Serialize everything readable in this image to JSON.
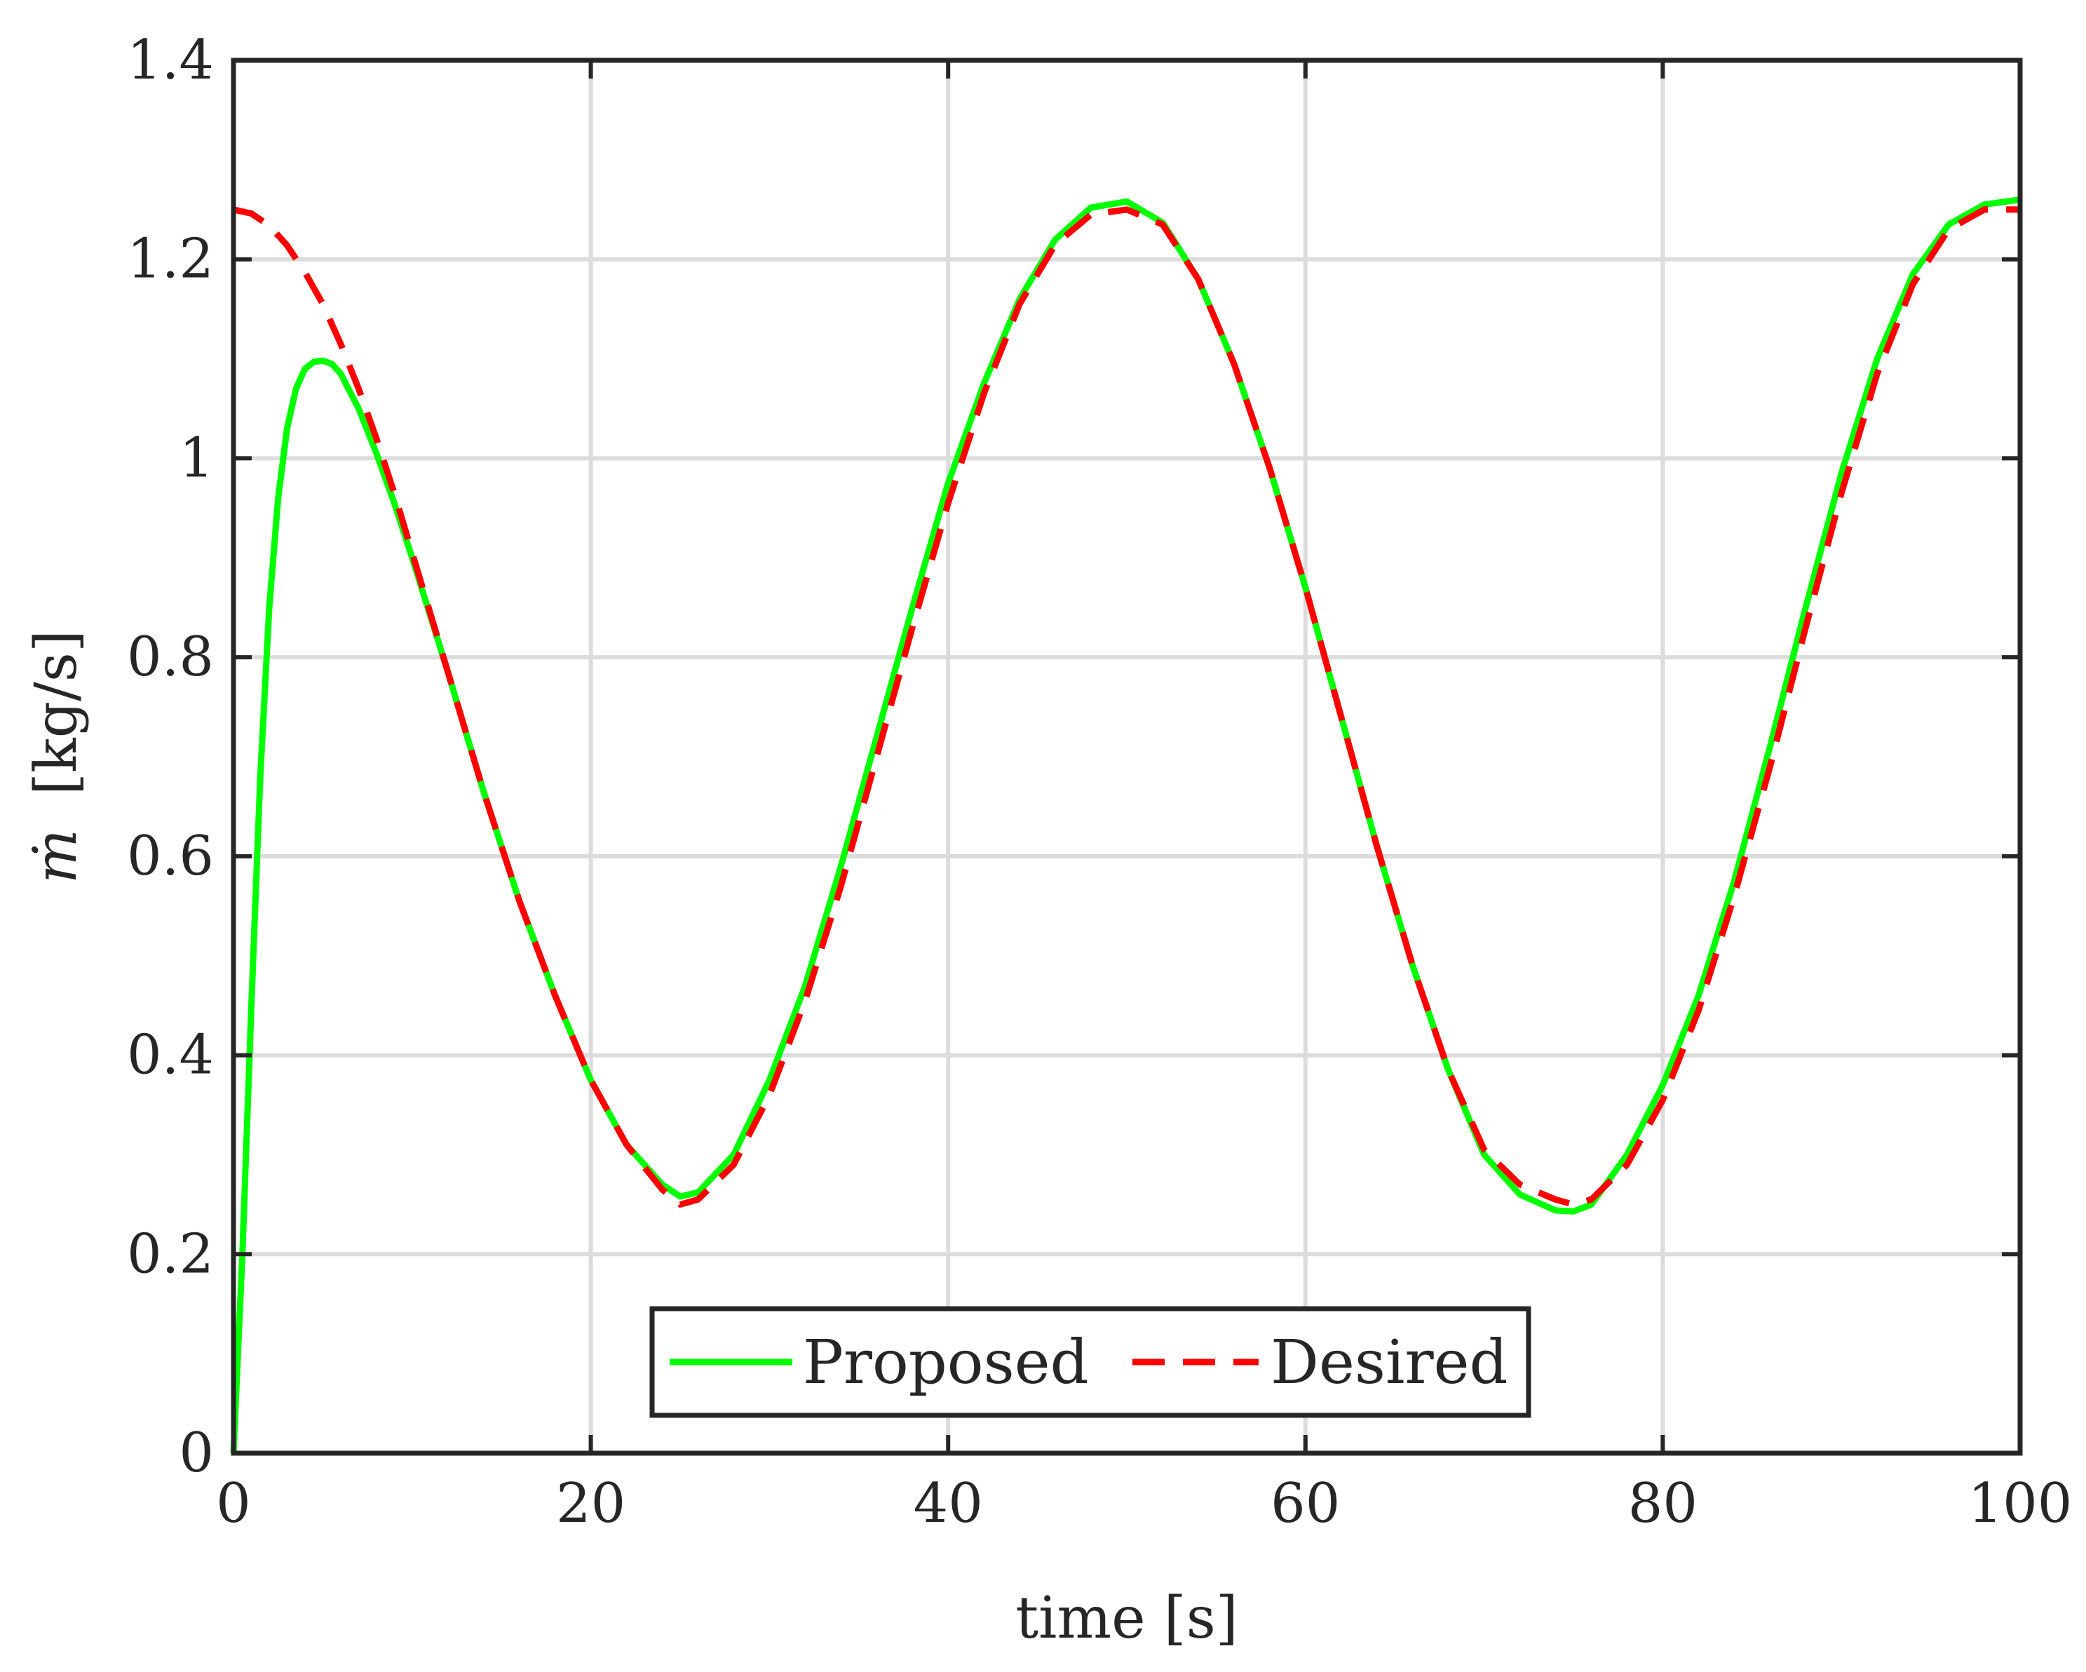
{
  "chart_data": {
    "type": "line",
    "xlabel": "time [s]",
    "ylabel_symbol": "ṁ",
    "ylabel_unit": "[kg/s]",
    "xlim": [
      0,
      100
    ],
    "ylim": [
      0,
      1.4
    ],
    "xticks": [
      0,
      20,
      40,
      60,
      80,
      100
    ],
    "yticks": [
      0,
      0.2,
      0.4,
      0.6,
      0.8,
      1,
      1.2,
      1.4
    ],
    "xtick_labels": [
      "0",
      "20",
      "40",
      "60",
      "80",
      "100"
    ],
    "ytick_labels": [
      "0",
      "0.2",
      "0.4",
      "0.6",
      "0.8",
      "1",
      "1.2",
      "1.4"
    ],
    "grid": true,
    "legend_position": "bottom-center",
    "series": [
      {
        "name": "Proposed",
        "color": "#00ff00",
        "style": "solid",
        "x": [
          0,
          0.5,
          1,
          1.5,
          2,
          2.5,
          3,
          3.5,
          4,
          4.5,
          5,
          5.5,
          6,
          7,
          8,
          9,
          10,
          12,
          14,
          16,
          18,
          20,
          22,
          24,
          25,
          26,
          28,
          30,
          32,
          34,
          36,
          38,
          40,
          42,
          44,
          46,
          48,
          50,
          52,
          54,
          56,
          58,
          60,
          62,
          64,
          66,
          68,
          70,
          72,
          74,
          75,
          76,
          78,
          80,
          82,
          84,
          86,
          88,
          90,
          92,
          94,
          96,
          98,
          100
        ],
        "y": [
          0,
          0.2,
          0.45,
          0.68,
          0.85,
          0.96,
          1.03,
          1.07,
          1.09,
          1.097,
          1.098,
          1.095,
          1.085,
          1.05,
          1.005,
          0.955,
          0.9,
          0.785,
          0.665,
          0.555,
          0.46,
          0.375,
          0.31,
          0.27,
          0.258,
          0.262,
          0.3,
          0.375,
          0.47,
          0.59,
          0.72,
          0.85,
          0.975,
          1.075,
          1.16,
          1.22,
          1.252,
          1.258,
          1.237,
          1.18,
          1.095,
          0.99,
          0.87,
          0.74,
          0.61,
          0.49,
          0.385,
          0.3,
          0.26,
          0.244,
          0.243,
          0.25,
          0.3,
          0.37,
          0.46,
          0.575,
          0.71,
          0.85,
          0.985,
          1.1,
          1.185,
          1.235,
          1.255,
          1.26
        ]
      },
      {
        "name": "Desired",
        "color": "#ff0000",
        "style": "dashed",
        "x": [
          0,
          1,
          2,
          3,
          4,
          5,
          6,
          7,
          8,
          9,
          10,
          12,
          14,
          16,
          18,
          20,
          22,
          24,
          25,
          26,
          28,
          30,
          32,
          34,
          36,
          38,
          40,
          42,
          44,
          46,
          48,
          50,
          52,
          54,
          56,
          58,
          60,
          62,
          64,
          66,
          68,
          70,
          72,
          74,
          75,
          76,
          78,
          80,
          82,
          84,
          86,
          88,
          90,
          92,
          94,
          96,
          98,
          100
        ],
        "y": [
          1.25,
          1.246,
          1.234,
          1.214,
          1.187,
          1.155,
          1.115,
          1.07,
          1.02,
          0.965,
          0.905,
          0.785,
          0.665,
          0.555,
          0.46,
          0.375,
          0.31,
          0.265,
          0.25,
          0.255,
          0.29,
          0.36,
          0.455,
          0.57,
          0.7,
          0.83,
          0.955,
          1.065,
          1.155,
          1.215,
          1.245,
          1.25,
          1.235,
          1.18,
          1.095,
          0.99,
          0.87,
          0.74,
          0.61,
          0.49,
          0.385,
          0.305,
          0.27,
          0.255,
          0.25,
          0.255,
          0.29,
          0.355,
          0.445,
          0.56,
          0.69,
          0.83,
          0.965,
          1.085,
          1.175,
          1.23,
          1.25,
          1.25
        ]
      }
    ]
  }
}
